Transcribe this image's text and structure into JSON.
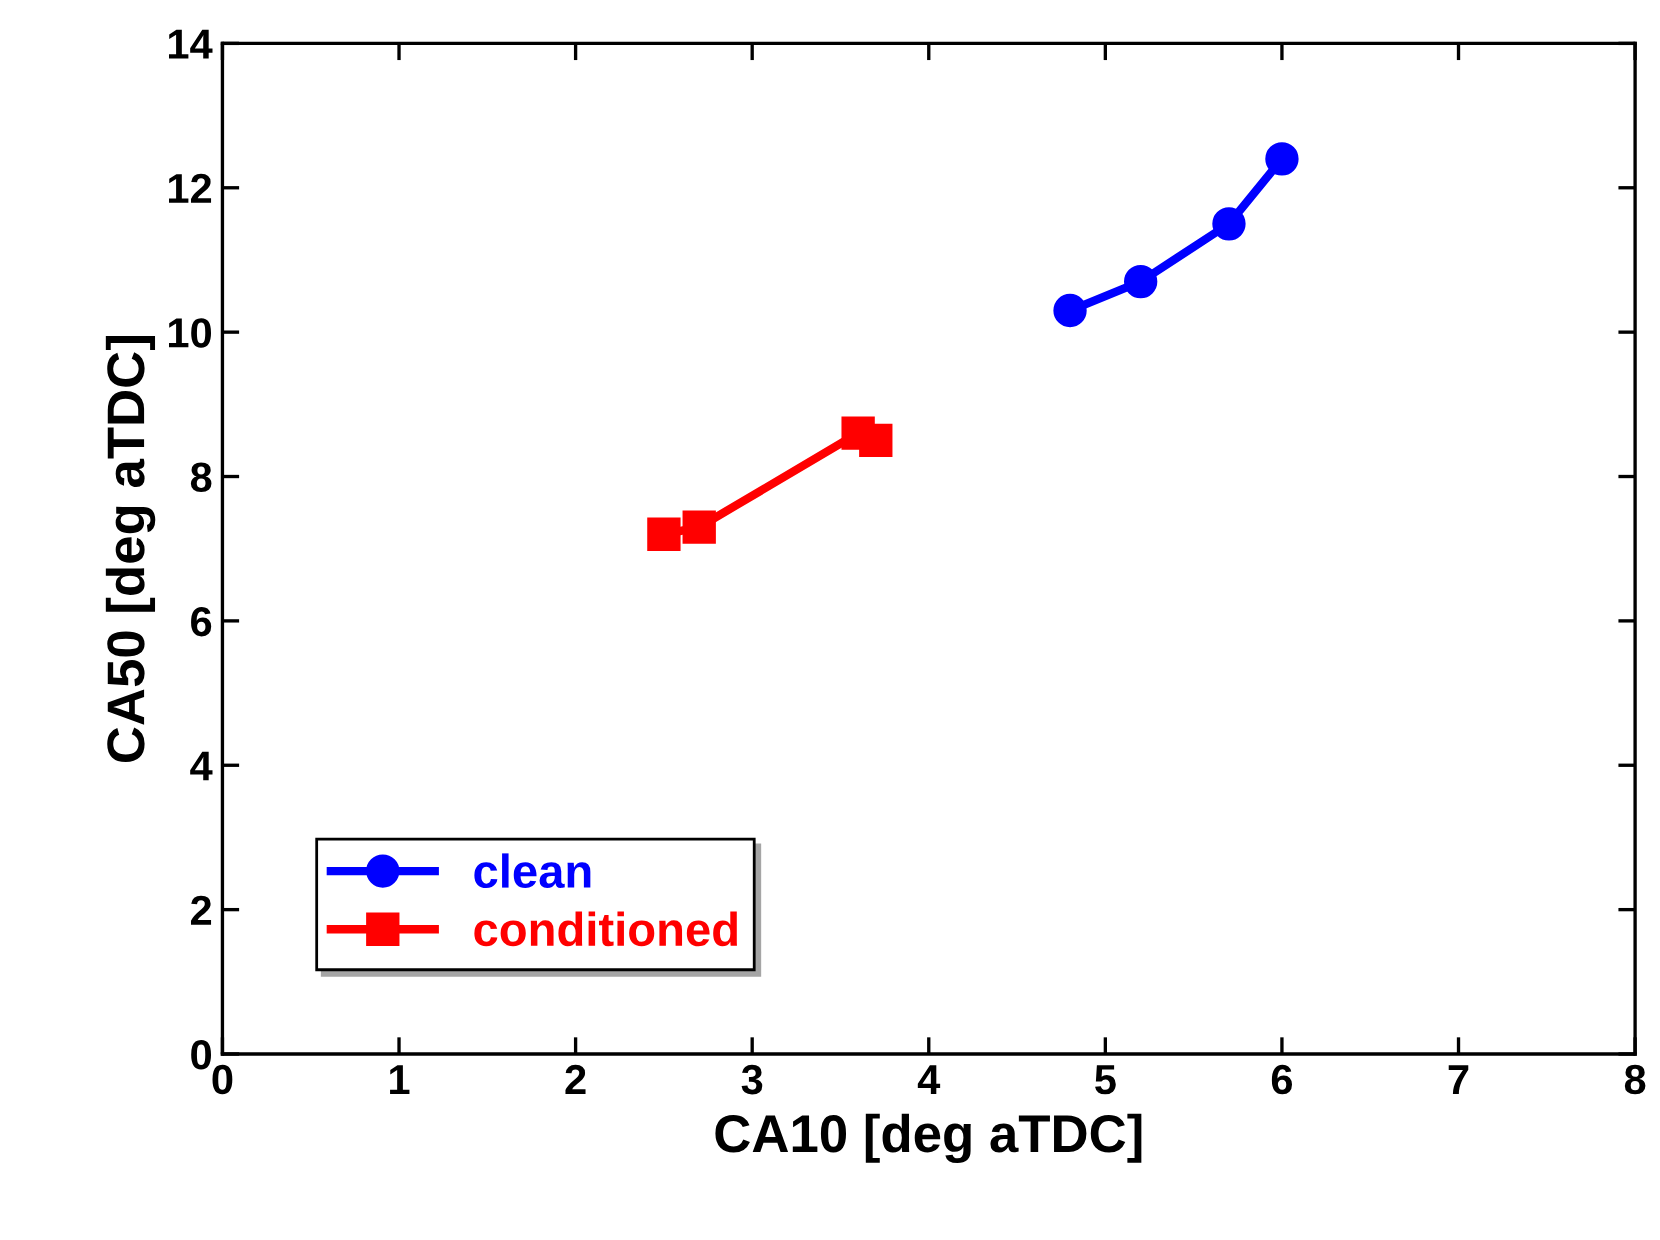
{
  "chart_data": {
    "type": "line",
    "xlabel": "CA10 [deg aTDC]",
    "ylabel": "CA50 [deg aTDC]",
    "xlim": [
      0,
      8
    ],
    "xticks": [
      0,
      1,
      2,
      3,
      4,
      5,
      6,
      7,
      8
    ],
    "ylim": [
      0,
      14
    ],
    "yticks": [
      0,
      2,
      4,
      6,
      8,
      10,
      12,
      14
    ],
    "grid": false,
    "legend": "bottom left",
    "series": [
      {
        "name": "clean",
        "color": "#0000ff",
        "marker": "circle",
        "x": [
          4.8,
          5.2,
          5.7,
          6.0
        ],
        "values": [
          10.3,
          10.7,
          11.5,
          12.4
        ]
      },
      {
        "name": "conditioned",
        "color": "#ff0000",
        "marker": "square",
        "x": [
          2.5,
          2.7,
          3.6,
          3.7
        ],
        "values": [
          7.2,
          7.3,
          8.6,
          8.5
        ]
      }
    ]
  }
}
